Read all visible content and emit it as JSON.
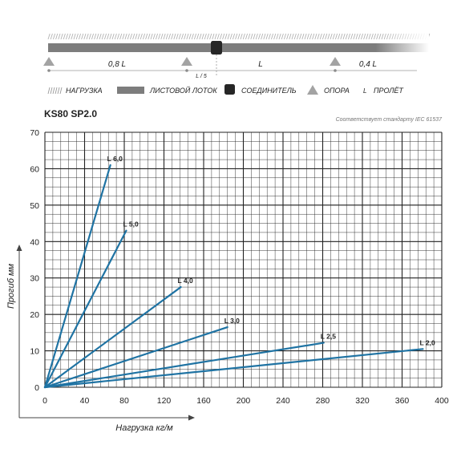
{
  "colors": {
    "series": "#1f73a3",
    "bar": "#7d7d7d",
    "connector": "#262626",
    "support": "#a3a3a3",
    "grid": "#222222"
  },
  "diagram": {
    "spans": [
      {
        "key": "left",
        "text": "0,8 L"
      },
      {
        "key": "middle",
        "text": "L"
      },
      {
        "key": "right",
        "text": "0,4 L"
      }
    ],
    "fifth_label": "L / 5"
  },
  "legend": {
    "load": "НАГРУЗКА",
    "tray": "ЛИСТОВОЙ ЛОТОК",
    "connector": "СОЕДИНИТЕЛЬ",
    "support": "ОПОРА",
    "span_symbol": "L",
    "span": "ПРОЛЁТ"
  },
  "chart_data": {
    "type": "line",
    "title": "KS80 SP2.0",
    "note": "Соответствует стандарту IEC 61537",
    "xlabel": "Нагрузка кг/м",
    "ylabel": "Прогиб мм",
    "xlim": [
      0,
      400
    ],
    "ylim": [
      0,
      70
    ],
    "xticks": [
      0,
      40,
      80,
      120,
      160,
      200,
      240,
      280,
      320,
      360,
      400
    ],
    "yticks": [
      0,
      10,
      20,
      30,
      40,
      50,
      60,
      70
    ],
    "grid": true,
    "series": [
      {
        "name": "L 6,0",
        "points": [
          [
            0,
            0
          ],
          [
            66,
            61
          ]
        ]
      },
      {
        "name": "L 5,0",
        "points": [
          [
            0,
            0
          ],
          [
            82,
            43
          ]
        ]
      },
      {
        "name": "L 4,0",
        "points": [
          [
            0,
            0
          ],
          [
            137,
            27.5
          ]
        ]
      },
      {
        "name": "L 3,0",
        "points": [
          [
            0,
            0
          ],
          [
            184,
            16.5
          ]
        ]
      },
      {
        "name": "L 2,5",
        "points": [
          [
            0,
            0
          ],
          [
            281,
            12.2
          ]
        ]
      },
      {
        "name": "L 2,0",
        "points": [
          [
            0,
            0
          ],
          [
            381,
            10.5
          ]
        ]
      }
    ]
  }
}
